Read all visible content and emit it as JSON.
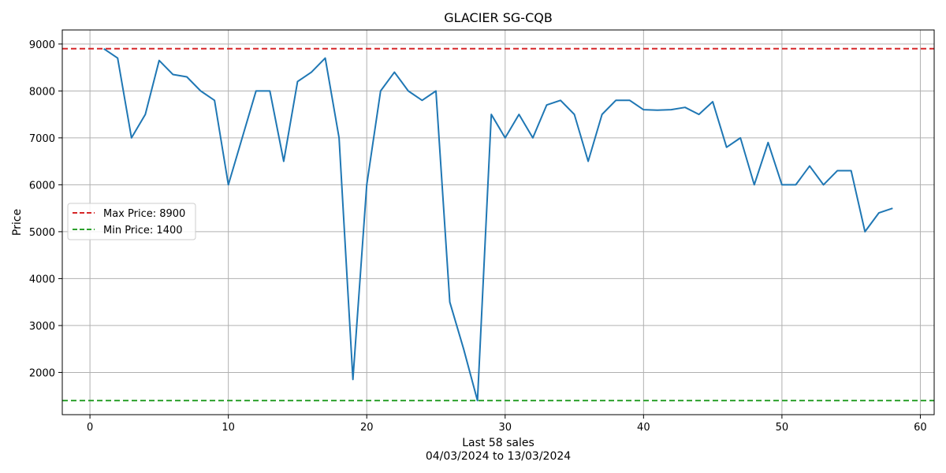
{
  "chart_data": {
    "type": "line",
    "title": "GLACIER SG-CQB",
    "xlabel": "Last 58 sales",
    "xlabel_sub": "04/03/2024 to 13/03/2024",
    "ylabel": "Price",
    "xlim": [
      -2,
      61
    ],
    "ylim": [
      1100,
      9300
    ],
    "xticks": [
      0,
      10,
      20,
      30,
      40,
      50,
      60
    ],
    "yticks": [
      2000,
      3000,
      4000,
      5000,
      6000,
      7000,
      8000,
      9000
    ],
    "grid": true,
    "legend_position": "center-left",
    "series": [
      {
        "color": "#1f77b4",
        "x": [
          1,
          2,
          3,
          4,
          5,
          6,
          7,
          8,
          9,
          10,
          11,
          12,
          13,
          14,
          15,
          16,
          17,
          18,
          19,
          20,
          21,
          22,
          23,
          24,
          25,
          26,
          27,
          28,
          29,
          30,
          31,
          32,
          33,
          34,
          35,
          36,
          37,
          38,
          39,
          40,
          41,
          42,
          43,
          44,
          45,
          46,
          47,
          48,
          49,
          50,
          51,
          52,
          53,
          54,
          55,
          56,
          57,
          58
        ],
        "y": [
          8900,
          8700,
          7000,
          7500,
          8650,
          8350,
          8300,
          8000,
          7800,
          6000,
          7000,
          8000,
          8000,
          6500,
          8200,
          8400,
          8700,
          7000,
          1850,
          6000,
          8000,
          8400,
          8000,
          7800,
          8000,
          3500,
          2500,
          1400,
          7500,
          7000,
          7500,
          7000,
          7700,
          7800,
          7500,
          6500,
          7500,
          7800,
          7800,
          7600,
          7590,
          7600,
          7650,
          7500,
          7770,
          6800,
          7000,
          6000,
          6900,
          6000,
          6000,
          6400,
          6000,
          6300,
          6300,
          5000,
          5400,
          5500
        ]
      }
    ],
    "reference_lines": [
      {
        "name": "Max Price: 8900",
        "value": 8900,
        "color": "#d62728"
      },
      {
        "name": "Min Price: 1400",
        "value": 1400,
        "color": "#2ca02c"
      }
    ]
  }
}
